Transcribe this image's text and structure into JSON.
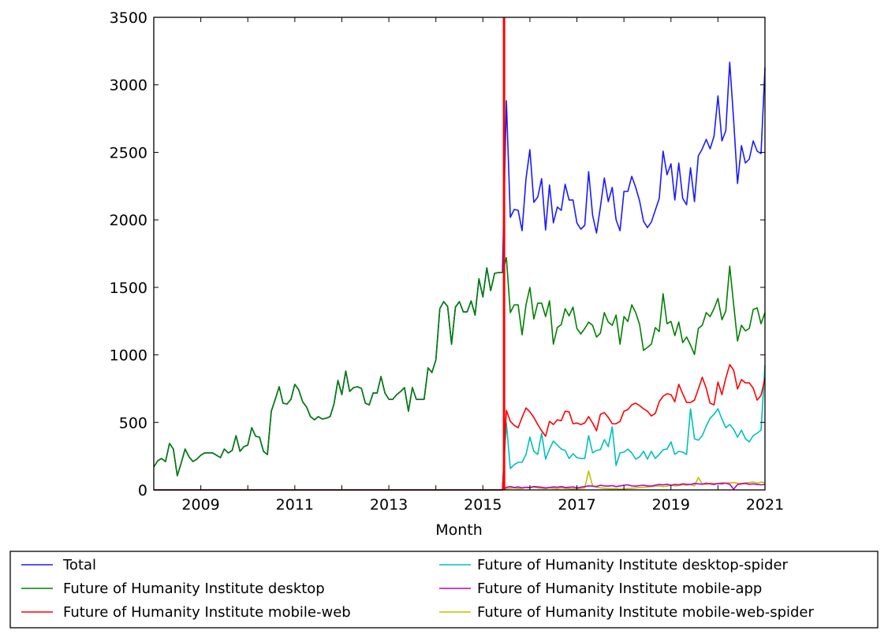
{
  "chart_data": {
    "type": "line",
    "title": "",
    "xlabel": "Month",
    "ylabel": "",
    "xlim": [
      2008.0,
      2021.0
    ],
    "ylim": [
      0,
      3500
    ],
    "xticks": [
      2009,
      2011,
      2013,
      2015,
      2017,
      2019,
      2021
    ],
    "xtick_labels": [
      "2009",
      "2011",
      "2013",
      "2015",
      "2017",
      "2019",
      "2021"
    ],
    "yticks": [
      0,
      500,
      1000,
      1500,
      2000,
      2500,
      3000,
      3500
    ],
    "ytick_labels": [
      "0",
      "500",
      "1000",
      "1500",
      "2000",
      "2500",
      "3000",
      "3500"
    ],
    "grid": false,
    "legend_placement": "below",
    "vline": {
      "x": 2015.45,
      "color": "#ff0000"
    },
    "pre_split": {
      "start": 2008.0,
      "step_months": 1,
      "values": [
        169,
        216,
        233,
        210,
        344,
        303,
        105,
        200,
        303,
        245,
        210,
        228,
        257,
        274,
        274,
        274,
        257,
        239,
        303,
        274,
        292,
        402,
        286,
        321,
        332,
        461,
        397,
        391,
        286,
        262,
        583,
        671,
        764,
        642,
        636,
        671,
        782,
        741,
        653,
        613,
        543,
        519,
        543,
        525,
        531,
        543,
        636,
        811,
        706,
        881,
        729,
        758,
        764,
        752,
        642,
        630,
        718,
        718,
        840,
        718,
        671,
        671,
        706,
        729,
        758,
        583,
        758,
        671,
        671,
        671,
        904,
        869,
        963,
        1342,
        1394,
        1359,
        1079,
        1354,
        1394,
        1319,
        1319,
        1400,
        1295,
        1564,
        1429,
        1645,
        1476,
        1604,
        1610,
        1610
      ]
    },
    "post_split_start": 2015.5,
    "series": [
      {
        "name": "Total",
        "color": "#1a1aff",
        "include_pre_split": true,
        "values": [
          2882,
          2019,
          2077,
          2071,
          1920,
          2305,
          2520,
          2130,
          2170,
          2305,
          1925,
          2258,
          1978,
          2095,
          2071,
          2264,
          2147,
          2147,
          1978,
          1931,
          1960,
          2357,
          2036,
          1902,
          2095,
          2310,
          2135,
          2240,
          2001,
          1920,
          2211,
          2211,
          2322,
          2240,
          2141,
          1990,
          1943,
          1984,
          2071,
          2159,
          2509,
          2334,
          2415,
          2147,
          2421,
          2159,
          2112,
          2386,
          2135,
          2474,
          2526,
          2596,
          2526,
          2620,
          2918,
          2585,
          2660,
          3167,
          2736,
          2270,
          2550,
          2421,
          2450,
          2585,
          2509,
          2491,
          3127
        ]
      },
      {
        "name": "Future of Humanity Institute desktop",
        "color": "#008000",
        "include_pre_split": true,
        "values": [
          1721,
          1313,
          1371,
          1371,
          1149,
          1371,
          1499,
          1266,
          1383,
          1383,
          1284,
          1400,
          1079,
          1202,
          1225,
          1342,
          1289,
          1354,
          1196,
          1155,
          1196,
          1243,
          1219,
          1132,
          1161,
          1313,
          1243,
          1219,
          1295,
          1079,
          1284,
          1248,
          1371,
          1313,
          1225,
          1033,
          1056,
          1079,
          1202,
          1173,
          1453,
          1231,
          1248,
          1143,
          1243,
          1091,
          1132,
          1073,
          1003,
          1196,
          1219,
          1313,
          1284,
          1342,
          1418,
          1260,
          1324,
          1657,
          1371,
          1103,
          1219,
          1178,
          1196,
          1336,
          1348,
          1231,
          1313
        ]
      },
      {
        "name": "Future of Humanity Institute mobile-web",
        "color": "#ff0000",
        "include_pre_split": false,
        "values": [
          589,
          508,
          478,
          461,
          537,
          607,
          578,
          537,
          484,
          438,
          397,
          508,
          484,
          519,
          513,
          583,
          578,
          490,
          496,
          484,
          496,
          543,
          496,
          438,
          560,
          572,
          537,
          490,
          490,
          508,
          583,
          595,
          630,
          642,
          624,
          601,
          583,
          548,
          566,
          653,
          694,
          712,
          706,
          653,
          782,
          712,
          648,
          648,
          665,
          747,
          834,
          753,
          642,
          630,
          799,
          706,
          828,
          928,
          887,
          747,
          817,
          793,
          793,
          753,
          665,
          700,
          828
        ]
      },
      {
        "name": "Future of Humanity Institute desktop-spider",
        "color": "#00bfbf",
        "include_pre_split": false,
        "values": [
          496,
          158,
          187,
          204,
          204,
          263,
          391,
          286,
          263,
          420,
          228,
          303,
          362,
          332,
          303,
          292,
          233,
          268,
          239,
          233,
          233,
          402,
          274,
          292,
          298,
          373,
          321,
          467,
          181,
          274,
          280,
          303,
          274,
          228,
          245,
          286,
          228,
          286,
          233,
          263,
          298,
          303,
          356,
          263,
          286,
          280,
          263,
          601,
          379,
          368,
          402,
          473,
          531,
          560,
          601,
          525,
          461,
          484,
          449,
          391,
          443,
          379,
          356,
          402,
          420,
          443,
          922
        ]
      },
      {
        "name": "Future of Humanity Institute mobile-app",
        "color": "#bf00bf",
        "include_pre_split": false,
        "values": [
          20,
          25,
          18,
          22,
          15,
          20,
          18,
          25,
          22,
          20,
          15,
          18,
          22,
          20,
          25,
          18,
          20,
          22,
          15,
          20,
          25,
          30,
          28,
          25,
          35,
          30,
          28,
          32,
          25,
          30,
          35,
          38,
          30,
          28,
          32,
          35,
          30,
          28,
          35,
          40,
          38,
          42,
          35,
          40,
          38,
          45,
          42,
          40,
          48,
          45,
          42,
          50,
          45,
          40,
          48,
          45,
          50,
          42,
          5,
          40,
          45,
          48,
          42,
          45,
          40,
          38,
          40
        ]
      },
      {
        "name": "Future of Humanity Institute mobile-web-spider",
        "color": "#bfbf00",
        "include_pre_split": false,
        "values": [
          10,
          12,
          15,
          10,
          12,
          18,
          15,
          20,
          15,
          12,
          10,
          15,
          12,
          10,
          15,
          12,
          10,
          8,
          10,
          12,
          15,
          140,
          30,
          20,
          15,
          12,
          10,
          8,
          10,
          5,
          8,
          10,
          12,
          15,
          18,
          20,
          22,
          25,
          28,
          30,
          25,
          28,
          35,
          30,
          32,
          38,
          35,
          40,
          30,
          92,
          45,
          40,
          50,
          48,
          45,
          55,
          50,
          52,
          55,
          50,
          48,
          52,
          55,
          60,
          50,
          58,
          55
        ]
      }
    ],
    "legend": [
      {
        "label": "Total",
        "color": "#1a1aff"
      },
      {
        "label": "Future of Humanity Institute desktop",
        "color": "#008000"
      },
      {
        "label": "Future of Humanity Institute mobile-web",
        "color": "#ff0000"
      },
      {
        "label": "Future of Humanity Institute desktop-spider",
        "color": "#00bfbf"
      },
      {
        "label": "Future of Humanity Institute mobile-app",
        "color": "#bf00bf"
      },
      {
        "label": "Future of Humanity Institute mobile-web-spider",
        "color": "#bfbf00"
      }
    ]
  }
}
